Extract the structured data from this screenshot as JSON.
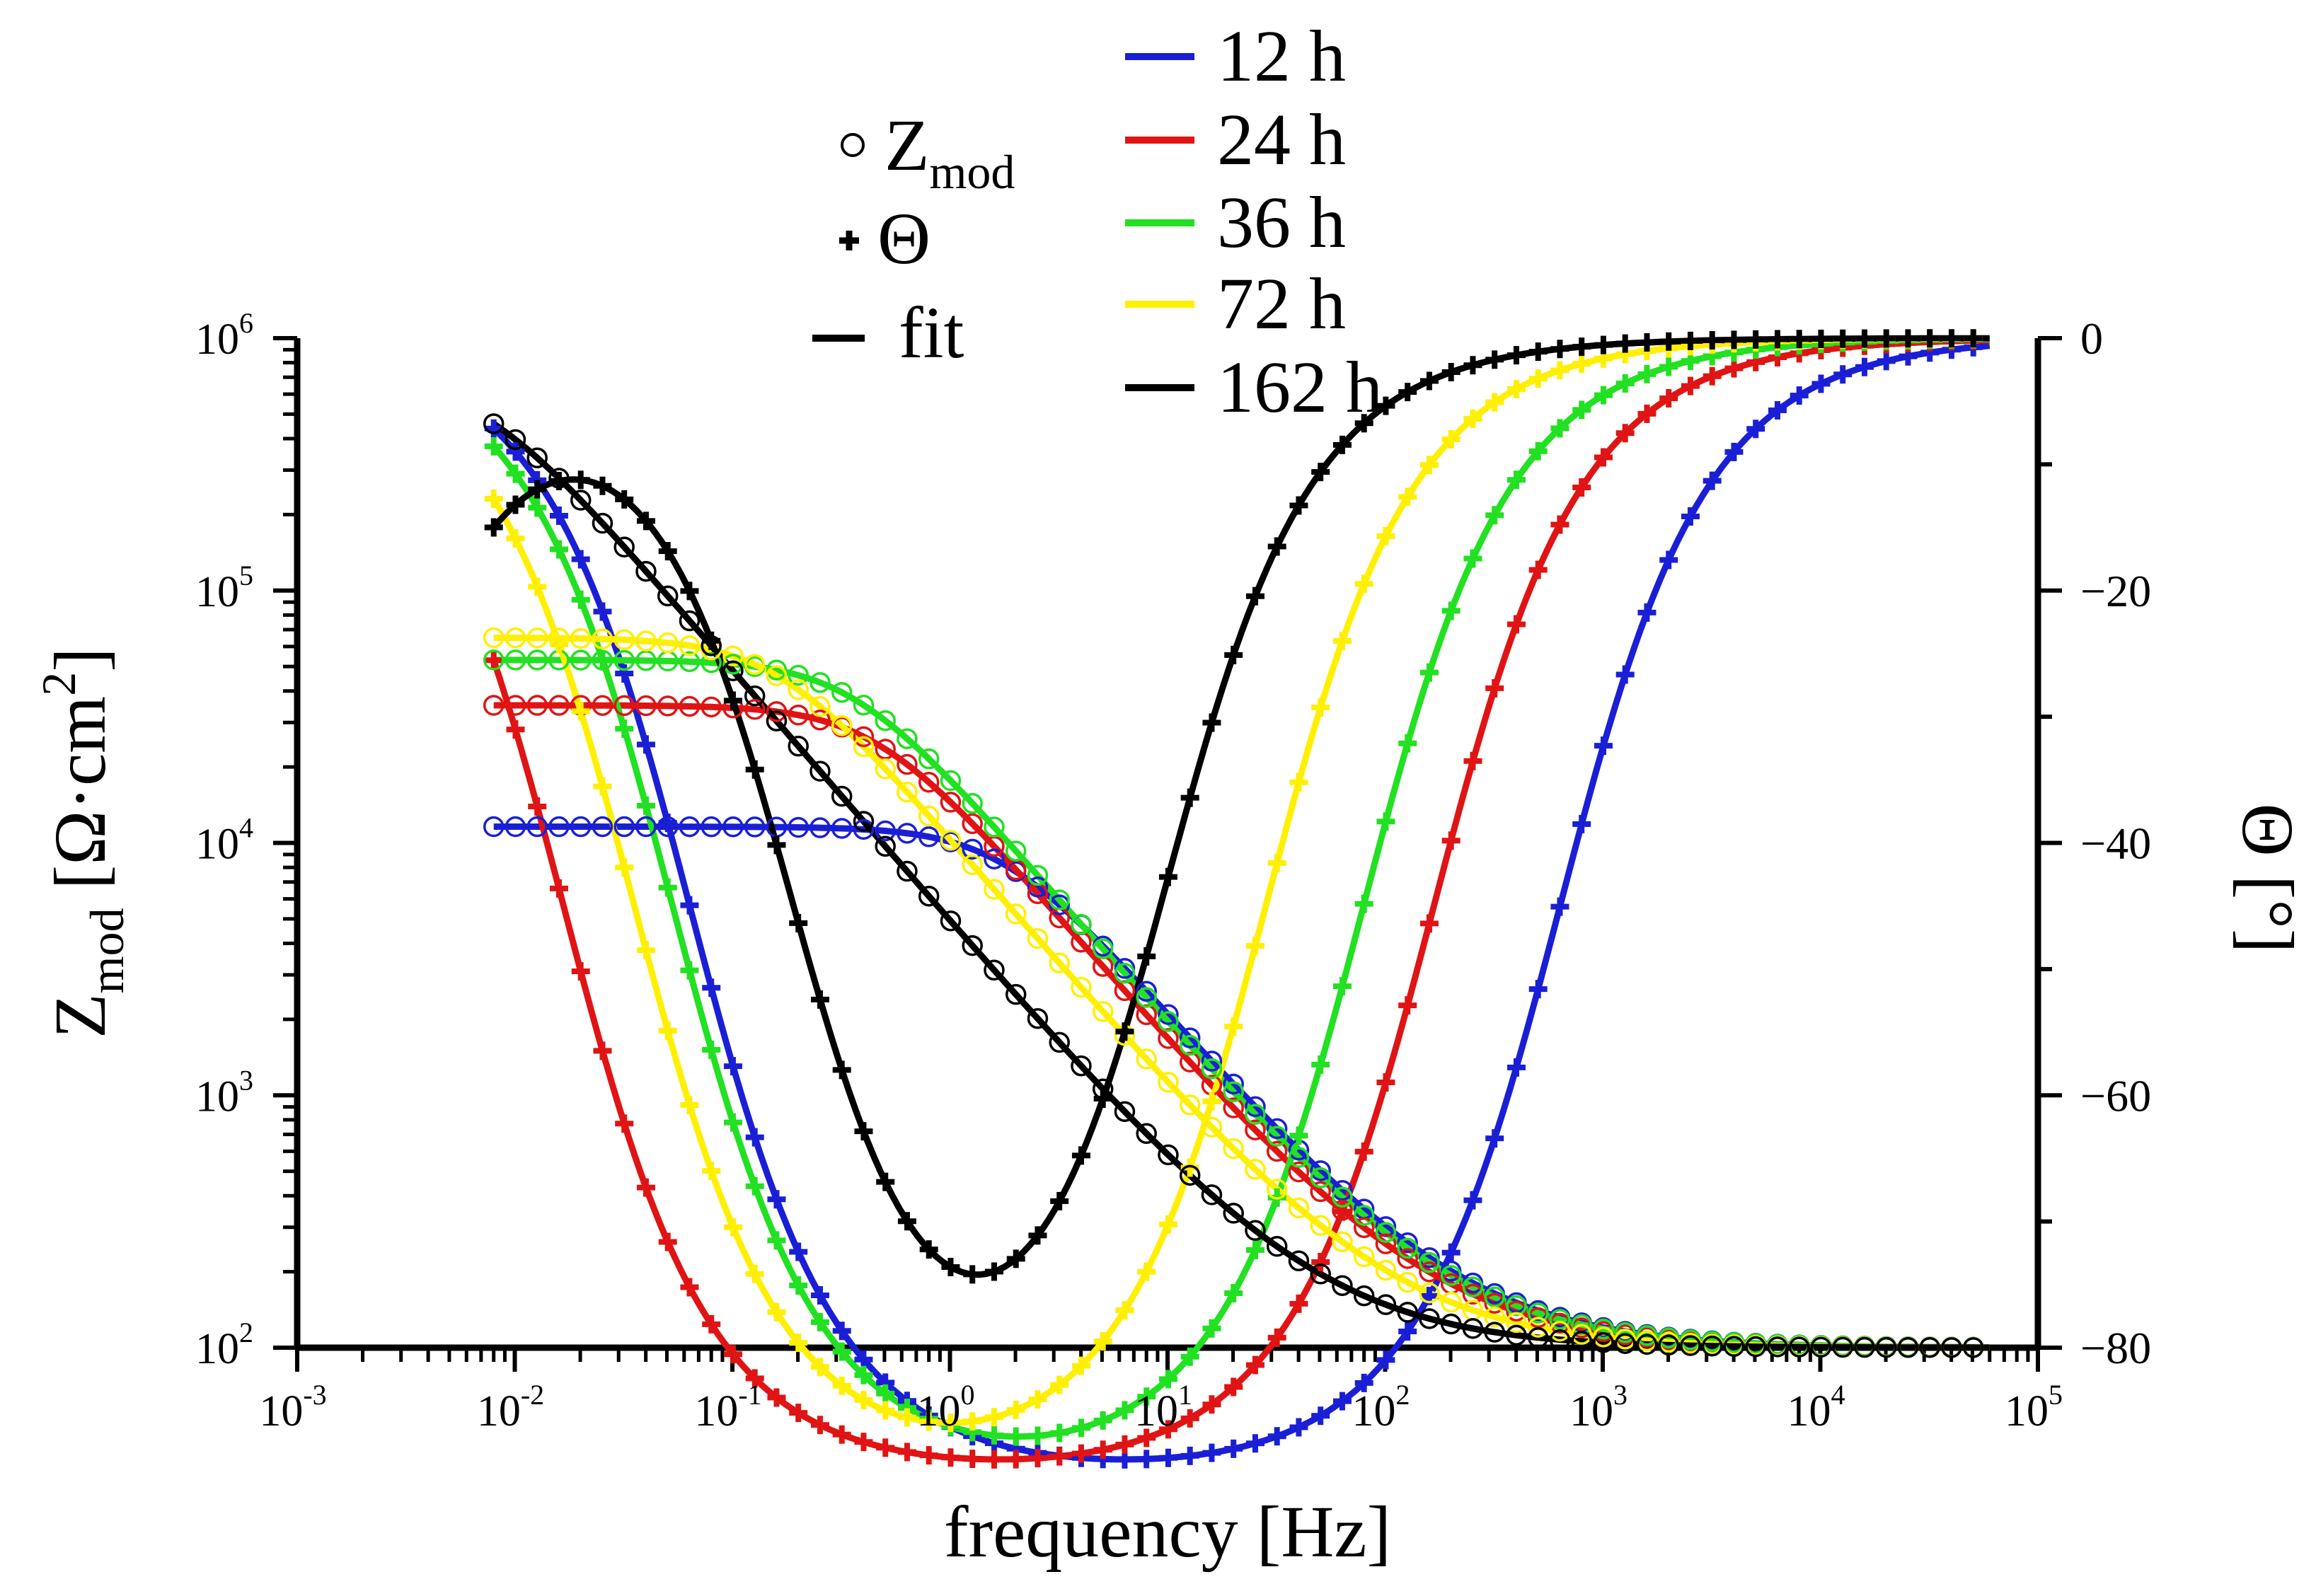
{
  "chart_data": {
    "type": "line",
    "title": "",
    "xlabel": "frequency [Hz]",
    "ylabel_left": {
      "base": "Z",
      "sub": "mod",
      "unit_pre": "[Ω·cm",
      "unit_sup": "2",
      "unit_post": "]"
    },
    "ylabel_right": "Θ [°]",
    "x_scale": "log",
    "xlim": [
      0.001,
      100000
    ],
    "ylim_left": [
      100,
      1000000
    ],
    "ylim_right": [
      -80,
      0
    ],
    "x_ticks": [
      {
        "base": "10",
        "exp": "-3"
      },
      {
        "base": "10",
        "exp": "-2"
      },
      {
        "base": "10",
        "exp": "-1"
      },
      {
        "base": "10",
        "exp": "0"
      },
      {
        "base": "10",
        "exp": "1"
      },
      {
        "base": "10",
        "exp": "2"
      },
      {
        "base": "10",
        "exp": "3"
      },
      {
        "base": "10",
        "exp": "4"
      },
      {
        "base": "10",
        "exp": "5"
      }
    ],
    "y_left_ticks": [
      {
        "base": "10",
        "exp": "2"
      },
      {
        "base": "10",
        "exp": "3"
      },
      {
        "base": "10",
        "exp": "4"
      },
      {
        "base": "10",
        "exp": "5"
      },
      {
        "base": "10",
        "exp": "6"
      }
    ],
    "y_right_ticks": [
      "0",
      "−20",
      "−40",
      "−60",
      "−80"
    ],
    "marker_legend": {
      "zmod": {
        "base": "Z",
        "sub": "mod"
      },
      "theta": "Θ",
      "fit": "fit"
    },
    "series": [
      {
        "name": "12 h",
        "color": "#1a1fd6",
        "zmod": {
          "R0": 100,
          "R1": 11500,
          "tau1": 0.09
        },
        "theta": {
          "R0": 100,
          "R1": 1000000,
          "tau1": 2.5,
          "R2": 0,
          "tau2": 1
        }
      },
      {
        "name": "24 h",
        "color": "#e01414",
        "zmod": {
          "R0": 100,
          "R1": 35000,
          "tau1": 0.35
        },
        "theta": {
          "R0": 100,
          "R1": 1000000,
          "tau1": 9.5,
          "R2": 0,
          "tau2": 1
        }
      },
      {
        "name": "36 h",
        "color": "#22e022",
        "zmod": {
          "R0": 100,
          "R1": 53000,
          "tau1": 0.45
        },
        "theta": {
          "R0": 100,
          "R1": 150000,
          "tau1": 3.0,
          "R2": 0,
          "tau2": 1
        }
      },
      {
        "name": "72 h",
        "color": "#ffef00",
        "zmod": {
          "R0": 100,
          "R1": 65000,
          "tau1": 1.0
        },
        "theta": {
          "R0": 100,
          "R1": 80000,
          "tau1": 4.5,
          "R2": 0,
          "tau2": 1
        }
      },
      {
        "name": "162 h",
        "color": "#000000",
        "zmod": {
          "R0": 100,
          "R1": 700000,
          "tau1": 23.0
        },
        "theta": {
          "R0": 100,
          "R1": 5000,
          "tau1": 0.85,
          "R2": 12000,
          "tau2": 200
        }
      }
    ]
  }
}
